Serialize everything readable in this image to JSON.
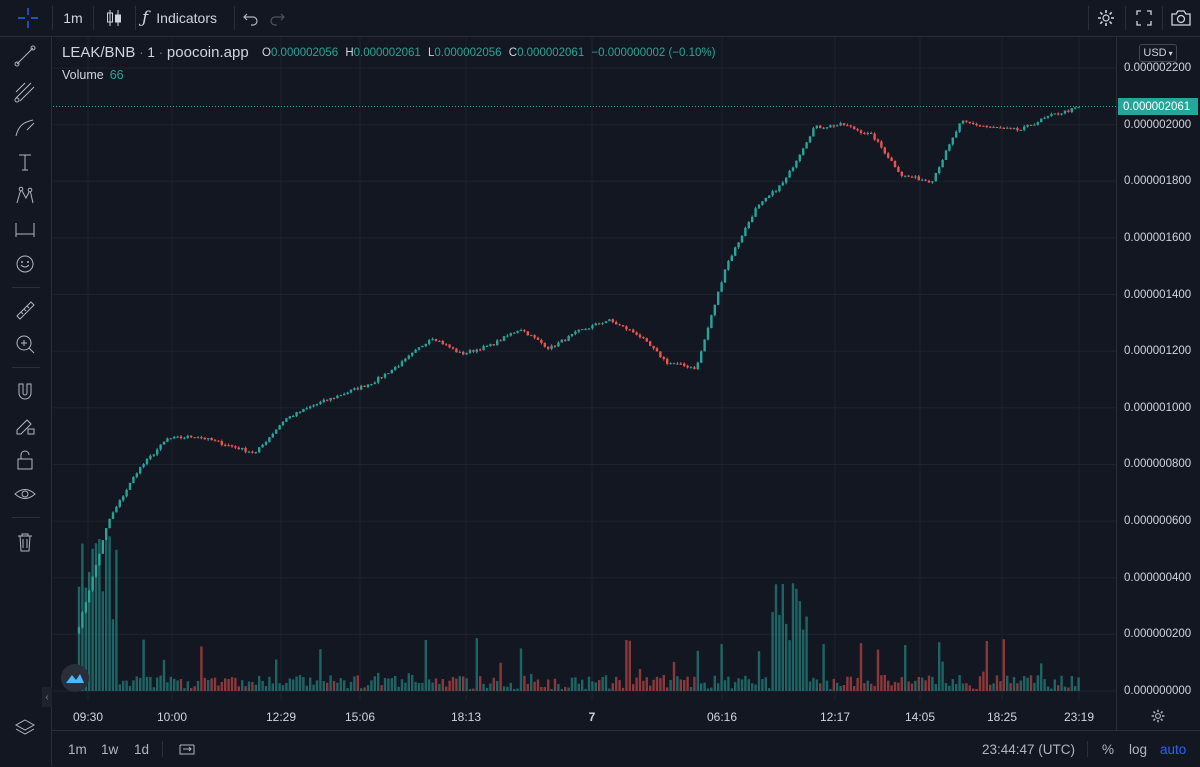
{
  "toolbar": {
    "interval": "1m",
    "indicators_label": "Indicators"
  },
  "legend": {
    "symbol": "LEAK/BNB",
    "interval": "1",
    "source": "poocoin.app",
    "o_label": "O",
    "o_value": "0.000002056",
    "h_label": "H",
    "h_value": "0.000002061",
    "l_label": "L",
    "l_value": "0.000002056",
    "c_label": "C",
    "c_value": "0.000002061",
    "change": "−0.000000002 (−0.10%)",
    "volume_label": "Volume",
    "volume_value": "66"
  },
  "currency": "USD",
  "last_price": "0.000002061",
  "bottom": {
    "range_1m": "1m",
    "range_1w": "1w",
    "range_1d": "1d",
    "clock": "23:44:47 (UTC)",
    "percent": "%",
    "log": "log",
    "auto": "auto"
  },
  "colors": {
    "up": "#26a69a",
    "down": "#ef5350",
    "background": "#131722",
    "grid": "#1e222d",
    "accent": "#2962ff"
  },
  "chart_data": {
    "type": "candlestick",
    "price_axis_labels": [
      "0.000002200",
      "0.000002000",
      "0.000001800",
      "0.000001600",
      "0.000001400",
      "0.000001200",
      "0.000001000",
      "0.000000800",
      "0.000000600",
      "0.000000400",
      "0.000000200",
      "0.000000000"
    ],
    "time_axis_labels": [
      "09:30",
      "10:00",
      "12:29",
      "15:06",
      "18:13",
      "7",
      "06:16",
      "12:17",
      "14:05",
      "18:25",
      "23:19"
    ],
    "ylim": [
      0,
      2.2e-06
    ],
    "close_path": [
      [
        2.3e-07,
        "09:30"
      ],
      [
        6e-07,
        ""
      ],
      [
        7.8e-07,
        ""
      ],
      [
        8.9e-07,
        "10:00"
      ],
      [
        9e-07,
        ""
      ],
      [
        8.7e-07,
        ""
      ],
      [
        8.4e-07,
        ""
      ],
      [
        9.6e-07,
        "12:29"
      ],
      [
        1.01e-06,
        ""
      ],
      [
        1.05e-06,
        "15:06"
      ],
      [
        1.09e-06,
        ""
      ],
      [
        1.16e-06,
        ""
      ],
      [
        1.25e-06,
        "18:13"
      ],
      [
        1.19e-06,
        ""
      ],
      [
        1.22e-06,
        ""
      ],
      [
        1.28e-06,
        "7"
      ],
      [
        1.21e-06,
        ""
      ],
      [
        1.27e-06,
        ""
      ],
      [
        1.31e-06,
        ""
      ],
      [
        1.26e-06,
        "06:16"
      ],
      [
        1.16e-06,
        ""
      ],
      [
        1.14e-06,
        ""
      ],
      [
        1.5e-06,
        ""
      ],
      [
        1.7e-06,
        ""
      ],
      [
        1.8e-06,
        ""
      ],
      [
        1.99e-06,
        "12:17"
      ],
      [
        2e-06,
        ""
      ],
      [
        1.96e-06,
        ""
      ],
      [
        1.82e-06,
        "14:05"
      ],
      [
        1.8e-06,
        ""
      ],
      [
        2.01e-06,
        ""
      ],
      [
        1.99e-06,
        "18:25"
      ],
      [
        1.98e-06,
        ""
      ],
      [
        2.03e-06,
        "23:19"
      ],
      [
        2.06e-06,
        ""
      ]
    ]
  }
}
